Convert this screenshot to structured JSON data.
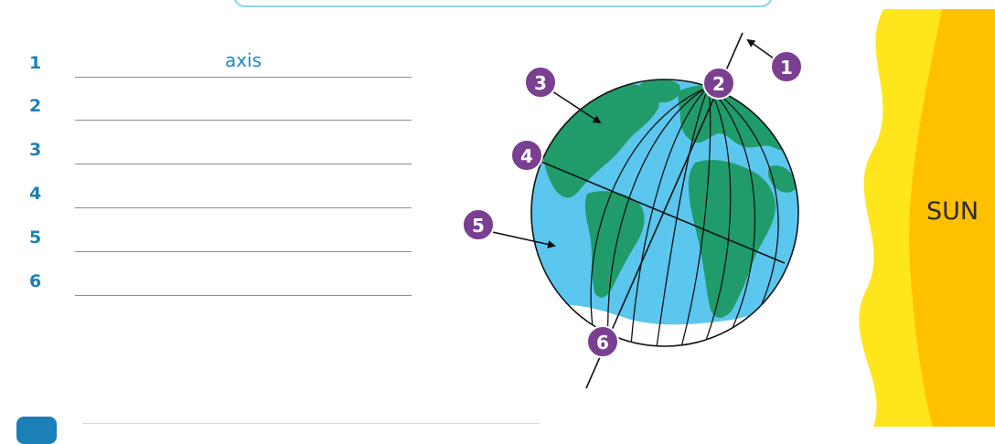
{
  "worksheet": {
    "rows": [
      {
        "number": "1",
        "answer": "axis"
      },
      {
        "number": "2",
        "answer": ""
      },
      {
        "number": "3",
        "answer": ""
      },
      {
        "number": "4",
        "answer": ""
      },
      {
        "number": "5",
        "answer": ""
      },
      {
        "number": "6",
        "answer": ""
      }
    ]
  },
  "diagram": {
    "markers": [
      "1",
      "2",
      "3",
      "4",
      "5",
      "6"
    ],
    "sun_label": "SUN",
    "colors": {
      "ocean": "#5bc7ef",
      "land": "#1f9c6a",
      "ice": "#ffffff",
      "marker": "#7a3f91",
      "sun_outer": "#ffe51c",
      "sun_inner": "#ffc000",
      "label_blue": "#1b7fb8"
    }
  }
}
